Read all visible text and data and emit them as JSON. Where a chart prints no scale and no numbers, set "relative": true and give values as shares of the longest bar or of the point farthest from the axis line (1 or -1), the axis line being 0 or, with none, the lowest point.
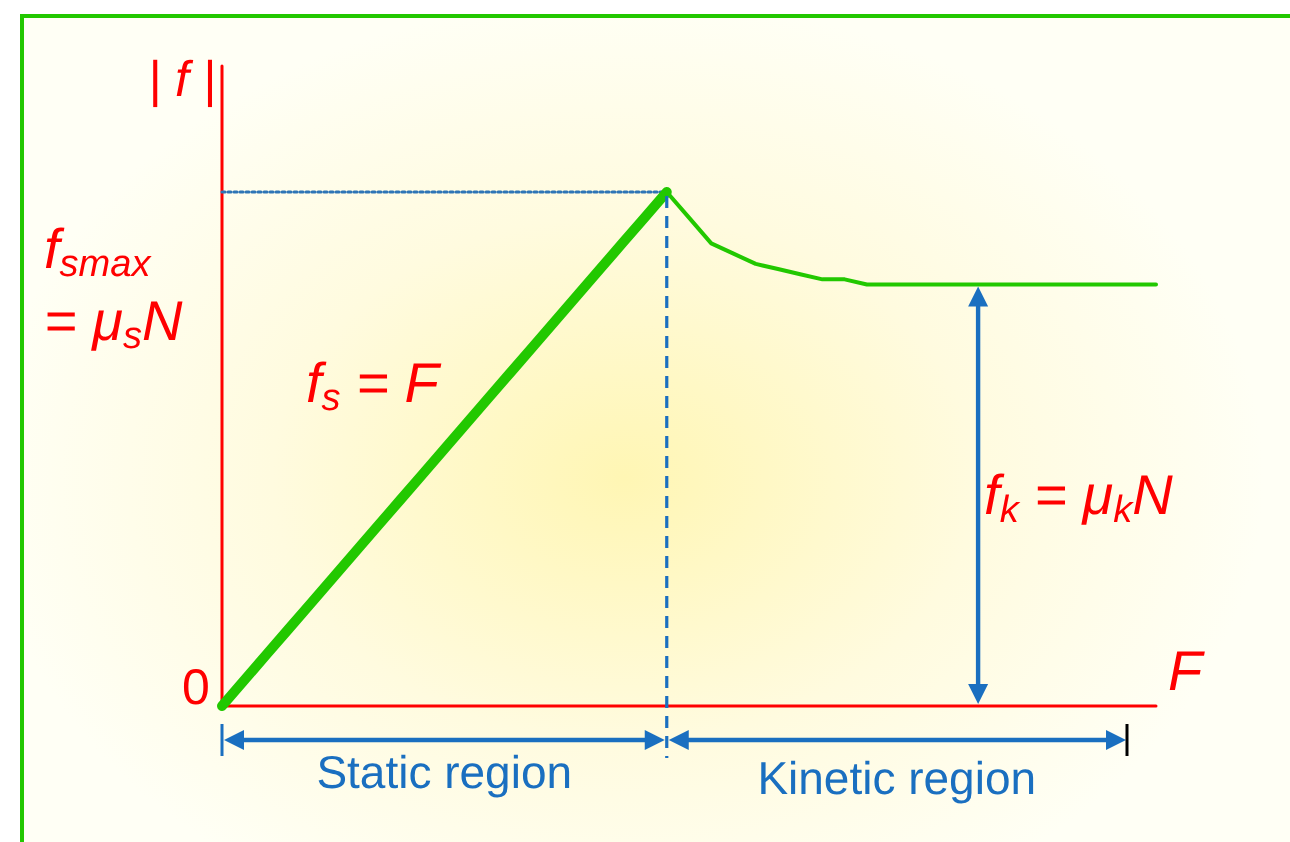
{
  "chart_data": {
    "type": "line",
    "relative": true,
    "xlabel": "F",
    "ylabel": "| f |",
    "categories": [
      null,
      null,
      null,
      null,
      null,
      null,
      null,
      null,
      null,
      null,
      null,
      null,
      null,
      null,
      null,
      null,
      null,
      null,
      null,
      null,
      null,
      null,
      null,
      null,
      null,
      null,
      null,
      null,
      null,
      null,
      null,
      null,
      null,
      null,
      null,
      null,
      null,
      null,
      null,
      null,
      null,
      null,
      null
    ],
    "series": [
      {
        "color": "#22c800",
        "values": [
          0,
          0.05,
          0.1,
          0.15,
          0.2,
          0.25,
          0.3,
          0.35,
          0.4,
          0.45,
          0.5,
          0.55,
          0.6,
          0.65,
          0.7,
          0.75,
          0.8,
          0.85,
          0.9,
          0.95,
          1,
          null,
          null,
          null,
          null,
          null,
          null,
          null,
          null,
          null,
          null,
          null,
          null,
          null,
          null,
          null,
          null,
          null,
          null,
          null,
          null,
          null,
          null
        ]
      },
      {
        "color": "#22c800",
        "values": [
          null,
          null,
          null,
          null,
          null,
          null,
          null,
          null,
          null,
          null,
          null,
          null,
          null,
          null,
          null,
          null,
          null,
          null,
          null,
          null,
          1,
          0.95,
          0.9,
          0.88,
          0.86,
          0.85,
          0.84,
          0.83,
          0.83,
          0.82,
          0.82,
          0.82,
          0.82,
          0.82,
          0.82,
          0.82,
          0.82,
          0.82,
          0.82,
          0.82,
          0.82,
          0.82,
          0.82
        ]
      },
      {
        "color": "#2e75b6",
        "line_style": "dotted",
        "values": [
          1,
          1,
          1,
          1,
          1,
          1,
          1,
          1,
          1,
          1,
          1,
          1,
          1,
          1,
          1,
          1,
          1,
          1,
          1,
          1,
          1,
          null,
          null,
          null,
          null,
          null,
          null,
          null,
          null,
          null,
          null,
          null,
          null,
          null,
          null,
          null,
          null,
          null,
          null,
          null,
          null,
          null,
          null
        ]
      }
    ],
    "annotations": [
      "f$_{smax}$\n= μ$_{s}$N",
      "f$_{s}$ = F",
      "f$_{k}$ = μ$_{k}$N",
      "Static region",
      "Kinetic region",
      "0"
    ]
  }
}
